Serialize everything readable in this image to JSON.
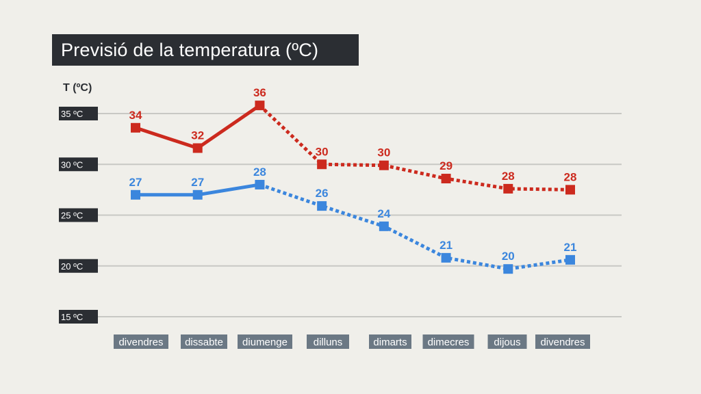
{
  "chart_data": {
    "type": "line",
    "title": "Previsió de la temperatura (ºC)",
    "ylabel": "T (ºC)",
    "xlabel": "",
    "categories": [
      "divendres",
      "dissabte",
      "diumenge",
      "dilluns",
      "dimarts",
      "dimecres",
      "dijous",
      "divendres"
    ],
    "yticks": [
      {
        "value": 35,
        "label": "35 ºC"
      },
      {
        "value": 30,
        "label": "30 ºC"
      },
      {
        "value": 25,
        "label": "25 ºC"
      },
      {
        "value": 20,
        "label": "20 ºC"
      },
      {
        "value": 15,
        "label": "15 ºC"
      }
    ],
    "ylim": [
      15,
      37.5
    ],
    "grid": true,
    "series": [
      {
        "values": [
          33.6,
          31.6,
          35.8,
          30.0,
          29.9,
          28.6,
          27.6,
          27.5
        ],
        "labels": [
          "34",
          "32",
          "36",
          "30",
          "30",
          "29",
          "28",
          "28"
        ],
        "color": "#cc2a1e",
        "observed_until_index": 2
      },
      {
        "values": [
          27.0,
          27.0,
          28.0,
          25.9,
          23.9,
          20.8,
          19.7,
          20.6
        ],
        "labels": [
          "27",
          "27",
          "28",
          "26",
          "24",
          "21",
          "20",
          "21"
        ],
        "color": "#3b86dd",
        "observed_until_index": 2
      }
    ]
  }
}
